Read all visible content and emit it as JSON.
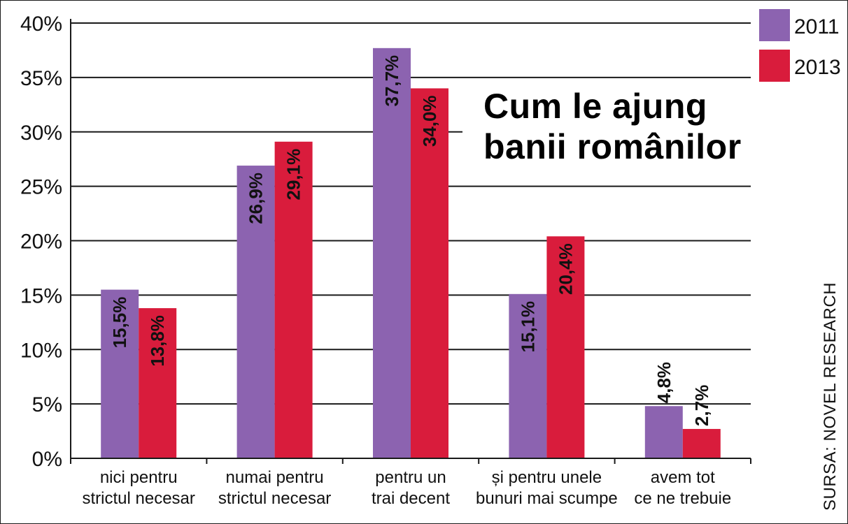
{
  "chart_data": {
    "type": "bar",
    "title_lines": [
      "Cum le ajung",
      "banii românilor"
    ],
    "source": "SURSA: NOVEL RESEARCH",
    "categories": [
      [
        "nici pentru",
        "strictul necesar"
      ],
      [
        "numai pentru",
        "strictul necesar"
      ],
      [
        "pentru un",
        "trai decent"
      ],
      [
        "și pentru unele",
        "bunuri mai scumpe"
      ],
      [
        "avem tot",
        "ce ne trebuie"
      ]
    ],
    "series": [
      {
        "name": "2011",
        "color": "#8c63b0",
        "values": [
          15.5,
          26.9,
          37.7,
          15.1,
          4.8
        ],
        "labels": [
          "15,5%",
          "26,9%",
          "37,7%",
          "15,1%",
          "4,8%"
        ]
      },
      {
        "name": "2013",
        "color": "#d91c3c",
        "values": [
          13.8,
          29.1,
          34.0,
          20.4,
          2.7
        ],
        "labels": [
          "13,8%",
          "29,1%",
          "34,0%",
          "20,4%",
          "2,7%"
        ]
      }
    ],
    "ylim": [
      0,
      40
    ],
    "yticks": [
      0,
      5,
      10,
      15,
      20,
      25,
      30,
      35,
      40
    ],
    "ytick_labels": [
      "0%",
      "5%",
      "10%",
      "15%",
      "20%",
      "25%",
      "30%",
      "35%",
      "40%"
    ],
    "grid": true,
    "legend_position": "top-right"
  }
}
